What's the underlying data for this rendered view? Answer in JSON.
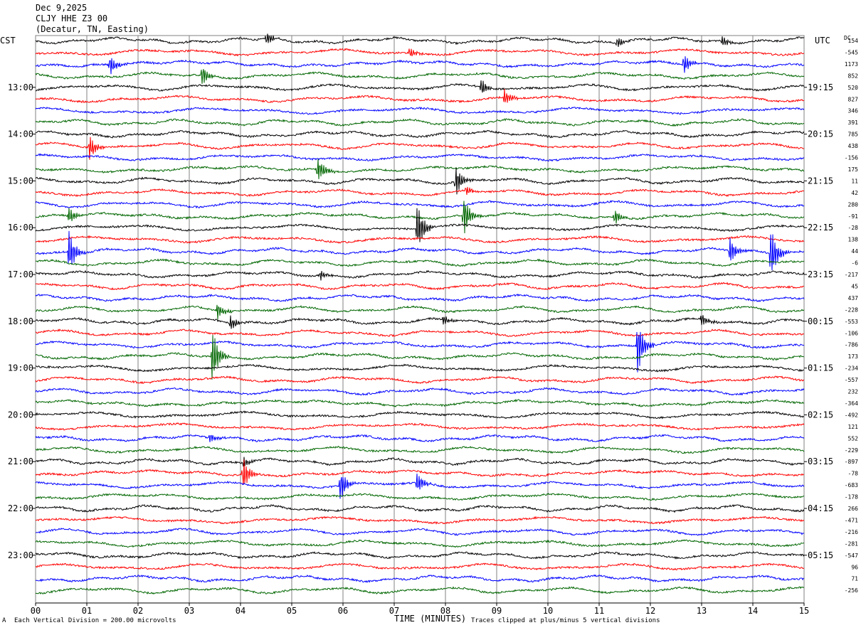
{
  "header": {
    "date": "Dec 9,2025",
    "station": "CLJY HHE Z3 00",
    "location": "(Decatur, TN, Easting)"
  },
  "left_zone": "CST",
  "right_zone": "UTC",
  "dc_label": "DC",
  "footer": {
    "scale_note": "Each Vertical Division =  200.00 microvolts",
    "xlabel": "TIME (MINUTES)",
    "clip_note": "Traces clipped at plus/minus 5 vertical divisions"
  },
  "colors": {
    "black": "#000000",
    "red": "#ff0000",
    "blue": "#0000ff",
    "green": "#006600",
    "grid": "#808080"
  },
  "chart_data": {
    "type": "line",
    "title": "CLJY HHE Z3 00",
    "xlabel": "TIME (MINUTES)",
    "xlim": [
      0,
      15
    ],
    "x_ticks": [
      "00",
      "01",
      "02",
      "03",
      "04",
      "05",
      "06",
      "07",
      "08",
      "09",
      "10",
      "11",
      "12",
      "13",
      "14",
      "15"
    ],
    "trace_color_cycle": [
      "black",
      "red",
      "blue",
      "green"
    ],
    "trace_count": 48,
    "left_hour_labels": [
      "13:00",
      "14:00",
      "15:00",
      "16:00",
      "17:00",
      "18:00",
      "19:00",
      "20:00",
      "21:00",
      "22:00",
      "23:00"
    ],
    "right_hour_labels": [
      "19:15",
      "20:15",
      "21:15",
      "22:15",
      "23:15",
      "00:15",
      "01:15",
      "02:15",
      "03:15",
      "04:15",
      "05:15"
    ],
    "hour_label_first_trace": 4,
    "dc_offsets": [
      154,
      -545,
      1173,
      852,
      520,
      827,
      346,
      391,
      785,
      438,
      -156,
      175,
      11,
      42,
      280,
      -91,
      -28,
      138,
      44,
      -6,
      -217,
      45,
      437,
      -228,
      -553,
      -106,
      -786,
      173,
      -234,
      -557,
      232,
      -364,
      -492,
      121,
      552,
      -229,
      -897,
      -78,
      -683,
      -178,
      266,
      -471,
      -216,
      -281,
      -547,
      96,
      71,
      -256
    ],
    "events": [
      {
        "trace": 0,
        "x": 4.5,
        "amp": 1.2
      },
      {
        "trace": 0,
        "x": 11.35,
        "amp": 1.0
      },
      {
        "trace": 0,
        "x": 13.4,
        "amp": 1.0
      },
      {
        "trace": 1,
        "x": 7.3,
        "amp": 1.0
      },
      {
        "trace": 2,
        "x": 1.45,
        "amp": 2.0
      },
      {
        "trace": 2,
        "x": 12.65,
        "amp": 2.0
      },
      {
        "trace": 3,
        "x": 3.25,
        "amp": 2.0
      },
      {
        "trace": 4,
        "x": 8.7,
        "amp": 1.5
      },
      {
        "trace": 5,
        "x": 9.15,
        "amp": 1.5
      },
      {
        "trace": 9,
        "x": 1.05,
        "amp": 2.5
      },
      {
        "trace": 11,
        "x": 5.5,
        "amp": 2.5
      },
      {
        "trace": 12,
        "x": 8.2,
        "amp": 3.0
      },
      {
        "trace": 13,
        "x": 8.4,
        "amp": 1.0
      },
      {
        "trace": 15,
        "x": 0.65,
        "amp": 1.5
      },
      {
        "trace": 15,
        "x": 8.35,
        "amp": 4.0
      },
      {
        "trace": 15,
        "x": 11.3,
        "amp": 1.5
      },
      {
        "trace": 16,
        "x": 7.45,
        "amp": 4.5
      },
      {
        "trace": 18,
        "x": 0.65,
        "amp": 4.0
      },
      {
        "trace": 18,
        "x": 13.55,
        "amp": 2.5
      },
      {
        "trace": 18,
        "x": 14.35,
        "amp": 5.0
      },
      {
        "trace": 20,
        "x": 5.55,
        "amp": 1.0
      },
      {
        "trace": 23,
        "x": 3.55,
        "amp": 1.5
      },
      {
        "trace": 24,
        "x": 3.8,
        "amp": 1.5
      },
      {
        "trace": 24,
        "x": 7.95,
        "amp": 1.0
      },
      {
        "trace": 24,
        "x": 13.0,
        "amp": 1.2
      },
      {
        "trace": 26,
        "x": 11.75,
        "amp": 5.0
      },
      {
        "trace": 27,
        "x": 3.45,
        "amp": 5.0
      },
      {
        "trace": 34,
        "x": 3.4,
        "amp": 1.0
      },
      {
        "trace": 36,
        "x": 4.05,
        "amp": 1.0
      },
      {
        "trace": 37,
        "x": 4.05,
        "amp": 3.0
      },
      {
        "trace": 38,
        "x": 5.95,
        "amp": 3.0
      },
      {
        "trace": 38,
        "x": 7.45,
        "amp": 2.0
      }
    ]
  }
}
